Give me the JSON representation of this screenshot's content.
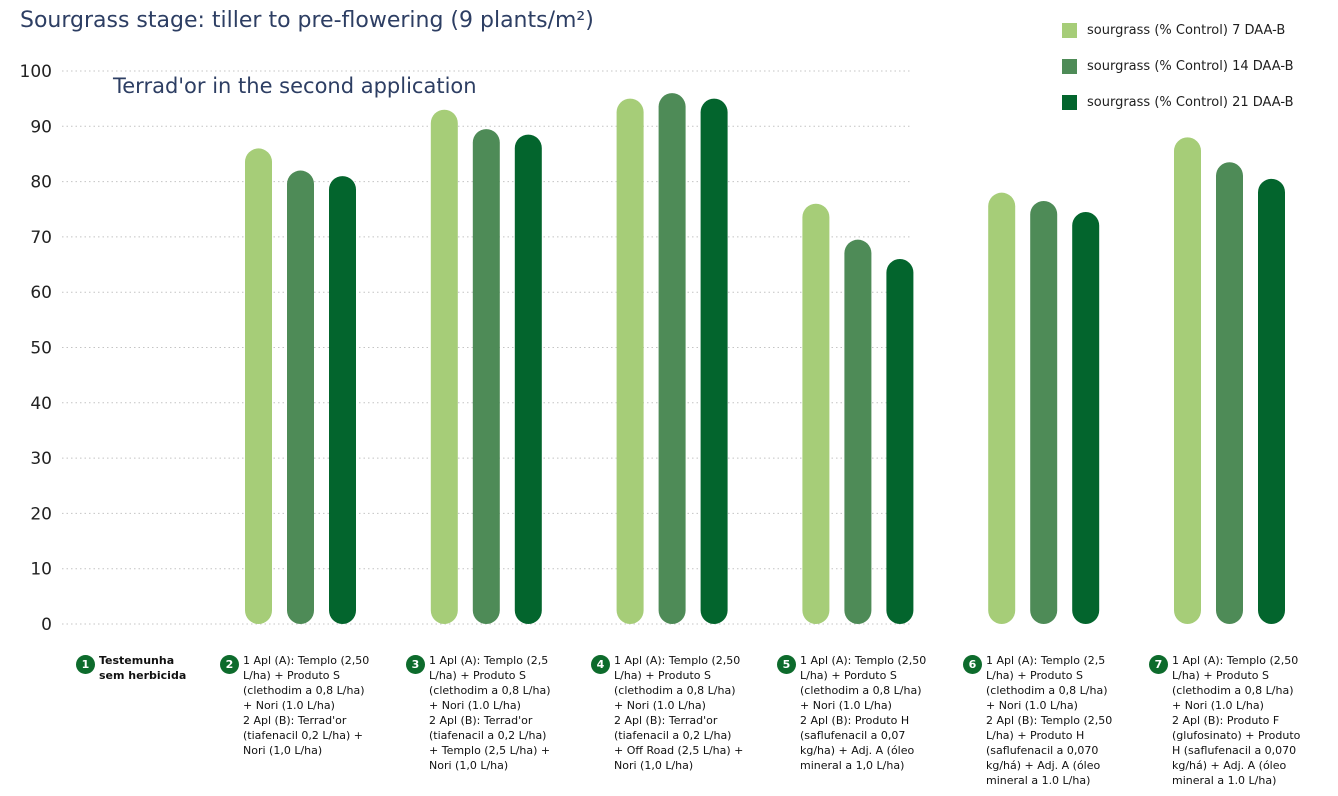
{
  "chart_data": {
    "type": "bar",
    "title": "Sourgrass stage: tiller to pre-flowering (9 plants/m²)",
    "subtitle": "Terrad'or in the second application",
    "ylim": [
      0,
      100
    ],
    "yticks": [
      0,
      10,
      20,
      30,
      40,
      50,
      60,
      70,
      80,
      90,
      100
    ],
    "grid": true,
    "legend_position": "top-right",
    "categories": [
      {
        "number": "1",
        "label": "Testemunha\nsem herbicida"
      },
      {
        "number": "2",
        "label": "1 Apl (A): Templo (2,50\nL/ha) + Produto S\n(clethodim a 0,8 L/ha)\n+ Nori (1.0 L/ha)\n2 Apl (B): Terrad'or\n(tiafenacil 0,2 L/ha) +\nNori (1,0 L/ha)"
      },
      {
        "number": "3",
        "label": "1 Apl (A): Templo (2,5\nL/ha) + Produto S\n(clethodim a 0,8 L/ha)\n+ Nori (1.0 L/ha)\n2 Apl (B): Terrad'or\n(tiafenacil a 0,2 L/ha)\n+ Templo (2,5 L/ha) +\nNori (1,0 L/ha)"
      },
      {
        "number": "4",
        "label": "1 Apl (A): Templo (2,50\nL/ha) + Produto S\n(clethodim a 0,8 L/ha)\n+ Nori (1.0 L/ha)\n2 Apl (B): Terrad'or\n(tiafenacil a 0,2 L/ha)\n+ Off Road (2,5 L/ha) +\nNori (1,0 L/ha)"
      },
      {
        "number": "5",
        "label": "1 Apl (A): Templo (2,50\nL/ha) +  Porduto S\n(clethodim a 0,8 L/ha)\n+ Nori (1.0 L/ha)\n2 Apl (B): Produto H\n(saflufenacil a 0,07\nkg/ha) + Adj. A (óleo\nmineral a 1,0 L/ha)"
      },
      {
        "number": "6",
        "label": "1 Apl (A): Templo (2,5\nL/ha) + Produto S\n(clethodim a 0,8 L/ha)\n+  Nori (1.0 L/ha)\n2 Apl (B): Templo (2,50\nL/ha) + Produto H\n(saflufenacil a 0,070\nkg/há) + Adj. A (óleo\nmineral a 1.0 L/ha)"
      },
      {
        "number": "7",
        "label": "1 Apl (A): Templo (2,50\nL/ha) + Produto S\n(clethodim a 0,8 L/ha)\n+  Nori (1.0 L/ha)\n2 Apl (B): Produto F\n(glufosinato) + Produto\nH (saflufenacil a 0,070\nkg/há) + Adj. A (óleo\nmineral a 1.0 L/ha)"
      }
    ],
    "series": [
      {
        "name": "sourgrass (% Control) 7 DAA-B",
        "color": "#a6cd78",
        "values": [
          0,
          86,
          93,
          95,
          76,
          78,
          88
        ]
      },
      {
        "name": "sourgrass  (% Control) 14 DAA-B",
        "color": "#4e8b57",
        "values": [
          0,
          82,
          89.5,
          96,
          69.5,
          76.5,
          83.5
        ]
      },
      {
        "name": "sourgrass  (% Control) 21 DAA-B",
        "color": "#03652d",
        "values": [
          0,
          81,
          88.5,
          95,
          66,
          74.5,
          80.5
        ]
      }
    ]
  }
}
